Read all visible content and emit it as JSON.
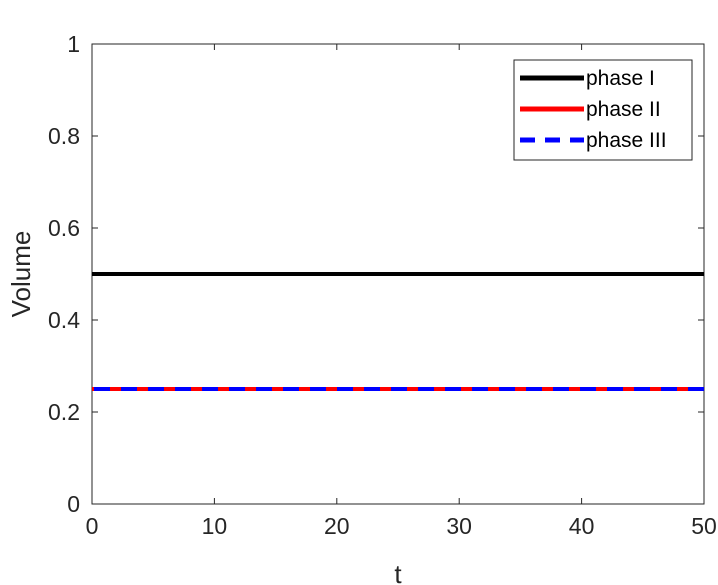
{
  "chart_data": {
    "type": "line",
    "title": "",
    "xlabel": "t",
    "ylabel": "Volume",
    "xlim": [
      0,
      50
    ],
    "ylim": [
      0,
      1
    ],
    "xticks": [
      0,
      10,
      20,
      30,
      40,
      50
    ],
    "yticks": [
      0,
      0.2,
      0.4,
      0.6,
      0.8,
      1
    ],
    "xtick_labels": [
      "0",
      "10",
      "20",
      "30",
      "40",
      "50"
    ],
    "ytick_labels": [
      "0",
      "0.2",
      "0.4",
      "0.6",
      "0.8",
      "1"
    ],
    "grid": false,
    "legend_position": "top-right",
    "series": [
      {
        "name": "phase I",
        "color": "#000000",
        "style": "solid",
        "x": [
          0,
          50
        ],
        "y": [
          0.5,
          0.5
        ]
      },
      {
        "name": "phase II",
        "color": "#ff0000",
        "style": "solid",
        "x": [
          0,
          50
        ],
        "y": [
          0.25,
          0.25
        ]
      },
      {
        "name": "phase III",
        "color": "#0000ff",
        "style": "dashed",
        "x": [
          0,
          50
        ],
        "y": [
          0.25,
          0.25
        ]
      }
    ]
  }
}
